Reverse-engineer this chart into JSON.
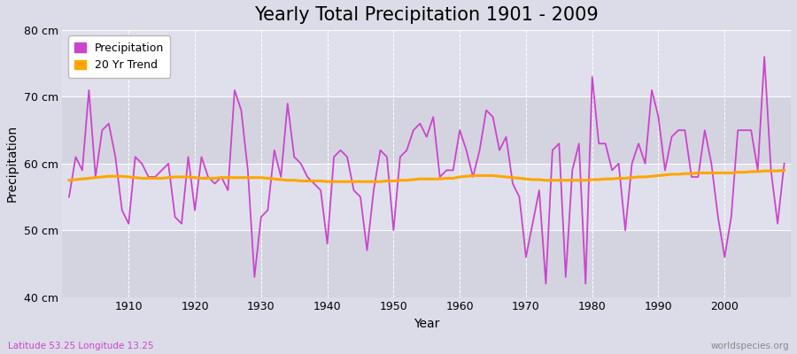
{
  "title": "Yearly Total Precipitation 1901 - 2009",
  "xlabel": "Year",
  "ylabel": "Precipitation",
  "subtitle": "Latitude 53.25 Longitude 13.25",
  "watermark": "worldspecies.org",
  "years": [
    1901,
    1902,
    1903,
    1904,
    1905,
    1906,
    1907,
    1908,
    1909,
    1910,
    1911,
    1912,
    1913,
    1914,
    1915,
    1916,
    1917,
    1918,
    1919,
    1920,
    1921,
    1922,
    1923,
    1924,
    1925,
    1926,
    1927,
    1928,
    1929,
    1930,
    1931,
    1932,
    1933,
    1934,
    1935,
    1936,
    1937,
    1938,
    1939,
    1940,
    1941,
    1942,
    1943,
    1944,
    1945,
    1946,
    1947,
    1948,
    1949,
    1950,
    1951,
    1952,
    1953,
    1954,
    1955,
    1956,
    1957,
    1958,
    1959,
    1960,
    1961,
    1962,
    1963,
    1964,
    1965,
    1966,
    1967,
    1968,
    1969,
    1970,
    1971,
    1972,
    1973,
    1974,
    1975,
    1976,
    1977,
    1978,
    1979,
    1980,
    1981,
    1982,
    1983,
    1984,
    1985,
    1986,
    1987,
    1988,
    1989,
    1990,
    1991,
    1992,
    1993,
    1994,
    1995,
    1996,
    1997,
    1998,
    1999,
    2000,
    2001,
    2002,
    2003,
    2004,
    2005,
    2006,
    2007,
    2008,
    2009
  ],
  "precipitation": [
    55,
    61,
    59,
    71,
    58,
    65,
    66,
    61,
    53,
    51,
    61,
    60,
    58,
    58,
    59,
    60,
    52,
    51,
    61,
    53,
    61,
    58,
    57,
    58,
    56,
    71,
    68,
    59,
    43,
    52,
    53,
    62,
    58,
    69,
    61,
    60,
    58,
    57,
    56,
    48,
    61,
    62,
    61,
    56,
    55,
    47,
    56,
    62,
    61,
    50,
    61,
    62,
    65,
    66,
    64,
    67,
    58,
    59,
    59,
    65,
    62,
    58,
    62,
    68,
    67,
    62,
    64,
    57,
    55,
    46,
    51,
    56,
    42,
    62,
    63,
    43,
    59,
    63,
    42,
    73,
    63,
    63,
    59,
    60,
    50,
    60,
    63,
    60,
    71,
    67,
    59,
    64,
    65,
    65,
    58,
    58,
    65,
    60,
    52,
    46,
    52,
    65,
    65,
    65,
    59,
    76,
    59,
    51,
    60
  ],
  "trend": [
    57.5,
    57.6,
    57.7,
    57.8,
    57.9,
    58.0,
    58.1,
    58.1,
    58.1,
    58.0,
    57.9,
    57.8,
    57.8,
    57.8,
    57.8,
    57.9,
    58.0,
    58.0,
    58.0,
    57.9,
    57.8,
    57.8,
    57.8,
    57.9,
    57.9,
    57.9,
    57.9,
    57.9,
    57.9,
    57.9,
    57.8,
    57.7,
    57.6,
    57.5,
    57.5,
    57.4,
    57.4,
    57.4,
    57.4,
    57.3,
    57.3,
    57.3,
    57.3,
    57.3,
    57.3,
    57.3,
    57.3,
    57.3,
    57.4,
    57.4,
    57.5,
    57.5,
    57.6,
    57.7,
    57.7,
    57.7,
    57.7,
    57.8,
    57.8,
    58.0,
    58.1,
    58.2,
    58.2,
    58.2,
    58.2,
    58.1,
    58.0,
    57.9,
    57.8,
    57.7,
    57.6,
    57.6,
    57.5,
    57.5,
    57.5,
    57.5,
    57.5,
    57.5,
    57.5,
    57.6,
    57.6,
    57.7,
    57.7,
    57.8,
    57.8,
    57.9,
    58.0,
    58.0,
    58.1,
    58.2,
    58.3,
    58.4,
    58.4,
    58.5,
    58.5,
    58.6,
    58.6,
    58.6,
    58.6,
    58.6,
    58.6,
    58.7,
    58.7,
    58.8,
    58.8,
    58.9,
    58.9,
    58.9,
    59.0
  ],
  "precip_color": "#CC44CC",
  "trend_color": "#FFA500",
  "bg_color": "#DCDCE8",
  "plot_bg_light": "#E8E8F0",
  "plot_bg_dark": "#D8D8E4",
  "ylim": [
    40,
    80
  ],
  "yticks": [
    40,
    50,
    60,
    70,
    80
  ],
  "ytick_labels": [
    "40 cm",
    "50 cm",
    "60 cm",
    "70 cm",
    "80 cm"
  ],
  "title_fontsize": 15,
  "axis_fontsize": 9,
  "legend_fontsize": 9
}
